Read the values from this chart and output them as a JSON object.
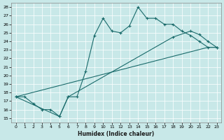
{
  "background_color": "#c8e8e8",
  "grid_color": "#b0d0d0",
  "line_color": "#1a6b6b",
  "xlabel": "Humidex (Indice chaleur)",
  "xlim": [
    -0.5,
    23.5
  ],
  "ylim": [
    14.5,
    28.5
  ],
  "yticks": [
    15,
    16,
    17,
    18,
    19,
    20,
    21,
    22,
    23,
    24,
    25,
    26,
    27,
    28
  ],
  "xticks": [
    0,
    1,
    2,
    3,
    4,
    5,
    6,
    7,
    8,
    9,
    10,
    11,
    12,
    13,
    14,
    15,
    16,
    17,
    18,
    19,
    20,
    21,
    22,
    23
  ],
  "curve1_x": [
    0,
    1,
    2,
    3,
    4,
    5,
    6,
    7,
    8,
    9,
    10,
    11,
    12,
    13,
    14,
    15,
    16,
    17,
    18,
    19,
    20,
    21,
    22,
    23
  ],
  "curve1_y": [
    17.5,
    17.5,
    16.7,
    16.0,
    16.0,
    15.2,
    17.5,
    17.5,
    20.5,
    24.7,
    26.7,
    25.2,
    25.0,
    25.8,
    28.0,
    26.7,
    26.7,
    26.0,
    26.0,
    25.2,
    24.7,
    24.0,
    23.3,
    23.3
  ],
  "curve2_x": [
    0,
    5,
    6,
    18,
    20,
    21,
    22,
    23
  ],
  "curve2_y": [
    17.5,
    15.2,
    17.5,
    24.5,
    25.2,
    24.8,
    24.0,
    23.3
  ],
  "curve3_x": [
    0,
    22,
    23
  ],
  "curve3_y": [
    17.5,
    23.3,
    23.3
  ]
}
